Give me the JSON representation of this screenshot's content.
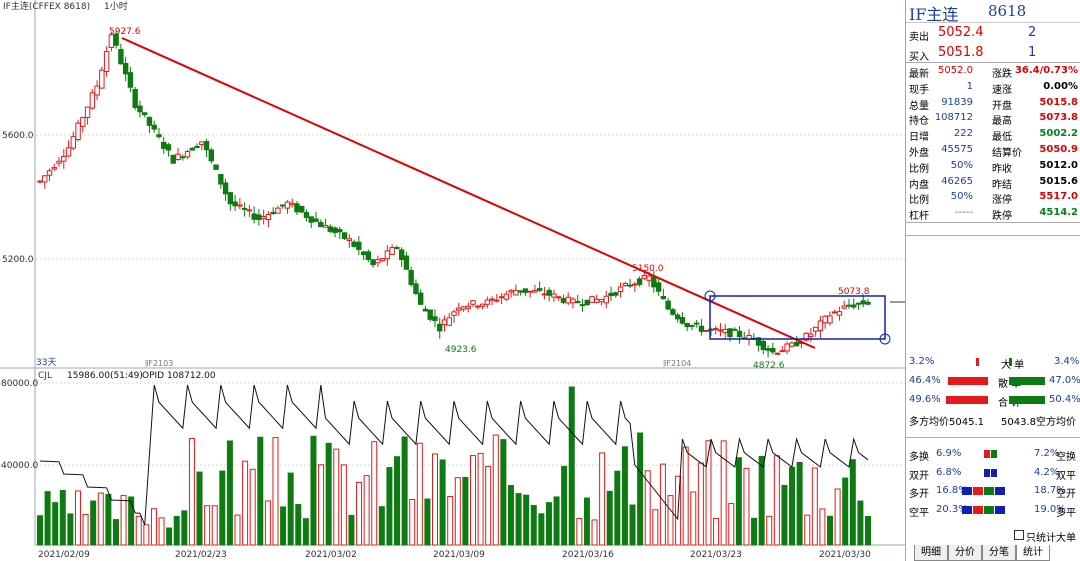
{
  "header": {
    "title": "IF主连(CFFEX 8618)",
    "period": "1小时"
  },
  "side": {
    "name": "IF主连",
    "code": "8618",
    "ask_label": "卖出",
    "ask": "5052.4",
    "ask_vol": "2",
    "bid_label": "买入",
    "bid": "5051.8",
    "bid_vol": "1",
    "rows": [
      {
        "k1": "最新",
        "v1": "5052.0",
        "c1": "red",
        "k2": "涨跌",
        "v2": "36.4/0.73%",
        "c2": "red"
      },
      {
        "k1": "现手",
        "v1": "1",
        "c1": "blue",
        "k2": "速涨",
        "v2": "0.00%",
        "c2": "black"
      },
      {
        "k1": "总量",
        "v1": "91839",
        "c1": "blue",
        "k2": "开盘",
        "v2": "5015.8",
        "c2": "red"
      },
      {
        "k1": "持仓",
        "v1": "108712",
        "c1": "blue",
        "k2": "最高",
        "v2": "5073.8",
        "c2": "red"
      },
      {
        "k1": "日增",
        "v1": "222",
        "c1": "blue",
        "k2": "最低",
        "v2": "5002.2",
        "c2": "green"
      },
      {
        "k1": "外盘",
        "v1": "45575",
        "c1": "blue",
        "k2": "结算价",
        "v2": "5050.9",
        "c2": "red"
      },
      {
        "k1": "比例",
        "v1": "50%",
        "c1": "blue",
        "k2": "昨收",
        "v2": "5012.0",
        "c2": "black"
      },
      {
        "k1": "内盘",
        "v1": "46265",
        "c1": "blue",
        "k2": "昨结",
        "v2": "5015.6",
        "c2": "black"
      },
      {
        "k1": "比例",
        "v1": "50%",
        "c1": "blue",
        "k2": "涨停",
        "v2": "5517.0",
        "c2": "red"
      },
      {
        "k1": "杠杆",
        "v1": "-----",
        "c1": "gray",
        "k2": "跌停",
        "v2": "4514.2",
        "c2": "green"
      }
    ],
    "big": {
      "l1": "3.2%",
      "lab1": "大 单",
      "r1": "3.4%",
      "l2": "46.4%",
      "lab2": "散 单",
      "r2": "47.0%",
      "l3": "49.6%",
      "lab3": "合 计",
      "r3": "50.4%",
      "avg_long": "多方均价5045.1",
      "avg_short": "5043.8空方均价"
    },
    "flow": [
      {
        "k": "多换",
        "v": "6.9%",
        "v2": "7.2%",
        "k2": "空换"
      },
      {
        "k": "双开",
        "v": "6.8%",
        "v2": "4.2%",
        "k2": "双平"
      },
      {
        "k": "多开",
        "v": "16.8%",
        "v2": "18.7%",
        "k2": "空开"
      },
      {
        "k": "空平",
        "v": "20.3%",
        "v2": "19.0%",
        "k2": "多平"
      }
    ],
    "checkbox": "只统计大单",
    "tabs": [
      "明细",
      "分价",
      "分笔",
      "统计"
    ]
  },
  "chart_data": {
    "type": "candlestick",
    "price_axis": {
      "ticks": [
        "5600.0",
        "5200.0"
      ],
      "ylim": [
        4840,
        5960
      ]
    },
    "volume_axis": {
      "ticks": [
        "80000.0",
        "40000.0"
      ],
      "ylim": [
        0,
        88000
      ]
    },
    "x_tick_labels": [
      "2021/02/09",
      "2021/02/23",
      "2021/03/02",
      "2021/03/09",
      "2021/03/16",
      "2021/03/23",
      "2021/03/30"
    ],
    "contract_marks": [
      "IF2103",
      "IF2104"
    ],
    "bars_label": "33天",
    "annotations": {
      "high": "5927.6",
      "low1": "4923.6",
      "peak2": "5150.0",
      "high2": "5073.8",
      "low2": "4872.6"
    },
    "volume_label": {
      "name": "CJL",
      "vol": "15986.00(51:49)",
      "opid": "OPID 108712.00"
    },
    "colors": {
      "up": "#e8191a",
      "down": "#0e7a12",
      "trend": "#e00000",
      "box": "#1020b0",
      "opid": "#111111"
    }
  }
}
